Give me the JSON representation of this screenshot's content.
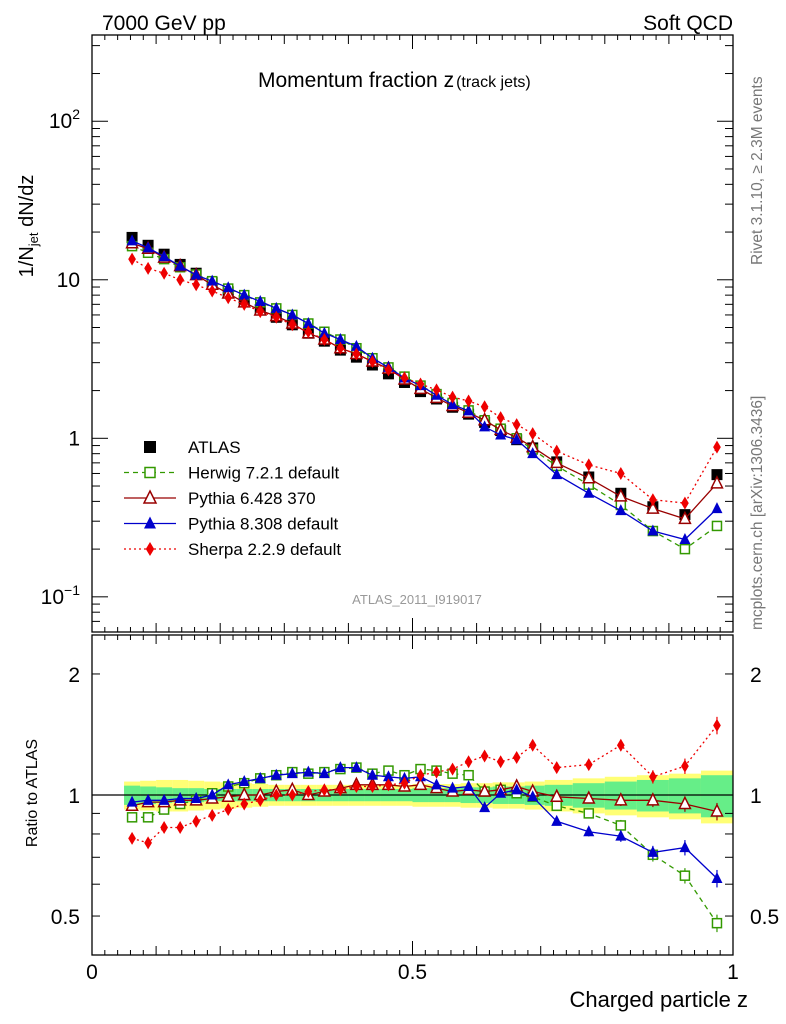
{
  "header": {
    "left": "7000 GeV pp",
    "right": "Soft QCD"
  },
  "side_labels": {
    "upper": "Rivet 3.1.10, ≥ 2.3M events",
    "lower": "mcplots.cern.ch [arXiv:1306.3436]"
  },
  "chart_data": [
    {
      "type": "scatter",
      "title_main": "Momentum fraction z",
      "title_sub": "(track jets)",
      "ylabel": "1/N_jet dN/dz",
      "ylog": true,
      "ylim": [
        0.06,
        350
      ],
      "xlim": [
        0,
        1
      ],
      "yticks": [
        {
          "v": 0.1,
          "label": "10",
          "sup": "−1"
        },
        {
          "v": 1,
          "label": "1",
          "sup": ""
        },
        {
          "v": 10,
          "label": "10",
          "sup": ""
        },
        {
          "v": 100,
          "label": "10",
          "sup": "2"
        }
      ],
      "watermark": "ATLAS_2011_I919017",
      "legend_position": "bottom-left",
      "x": [
        0.0625,
        0.0875,
        0.1125,
        0.1375,
        0.1625,
        0.1875,
        0.2125,
        0.2375,
        0.2625,
        0.2875,
        0.3125,
        0.3375,
        0.3625,
        0.3875,
        0.4125,
        0.4375,
        0.4625,
        0.4875,
        0.5125,
        0.5375,
        0.5625,
        0.5875,
        0.6125,
        0.6375,
        0.6625,
        0.6875,
        0.725,
        0.775,
        0.825,
        0.875,
        0.925,
        0.975
      ],
      "series": [
        {
          "name": "ATLAS",
          "color": "#000000",
          "marker": "square-filled",
          "line": "none",
          "values": [
            18.5,
            16.5,
            14.5,
            12.5,
            11.0,
            9.6,
            8.4,
            7.4,
            6.5,
            5.8,
            5.2,
            4.6,
            4.1,
            3.6,
            3.25,
            2.9,
            2.55,
            2.25,
            1.97,
            1.77,
            1.57,
            1.42,
            1.26,
            1.12,
            0.98,
            0.87,
            0.71,
            0.57,
            0.45,
            0.37,
            0.33,
            0.59
          ]
        },
        {
          "name": "Herwig 7.2.1 default",
          "color": "#339900",
          "marker": "square-open",
          "line": "dashed",
          "values": [
            16.3,
            14.8,
            13.5,
            12.0,
            10.8,
            9.8,
            8.8,
            8.0,
            7.2,
            6.6,
            6.0,
            5.3,
            4.7,
            4.2,
            3.7,
            3.2,
            2.8,
            2.45,
            2.15,
            1.9,
            1.67,
            1.5,
            1.3,
            1.15,
            1.0,
            0.85,
            0.67,
            0.51,
            0.38,
            0.26,
            0.2,
            0.28
          ]
        },
        {
          "name": "Pythia 6.428 370",
          "color": "#990000",
          "marker": "triangle-open",
          "line": "solid",
          "values": [
            17.0,
            15.7,
            13.8,
            12.2,
            10.7,
            9.3,
            8.2,
            7.2,
            6.4,
            5.9,
            5.3,
            4.6,
            4.2,
            3.7,
            3.4,
            3.05,
            2.75,
            2.35,
            2.05,
            1.8,
            1.6,
            1.45,
            1.3,
            1.13,
            1.01,
            0.88,
            0.7,
            0.56,
            0.43,
            0.36,
            0.31,
            0.52
          ]
        },
        {
          "name": "Pythia 8.308 default",
          "color": "#0000cc",
          "marker": "triangle-filled",
          "line": "solid",
          "values": [
            17.6,
            15.9,
            14.0,
            12.2,
            10.7,
            9.8,
            8.9,
            8.0,
            7.3,
            6.6,
            6.0,
            5.3,
            4.6,
            4.2,
            3.8,
            3.2,
            2.8,
            2.4,
            2.15,
            1.87,
            1.63,
            1.49,
            1.18,
            1.05,
            0.98,
            0.8,
            0.59,
            0.45,
            0.35,
            0.26,
            0.23,
            0.36
          ]
        },
        {
          "name": "Sherpa 2.2.9 default",
          "color": "#ee0000",
          "marker": "diamond-filled",
          "line": "dotted",
          "values": [
            13.5,
            11.8,
            11.0,
            10.0,
            9.3,
            8.5,
            7.7,
            7.0,
            6.3,
            5.8,
            5.2,
            4.7,
            4.2,
            3.7,
            3.4,
            3.05,
            2.7,
            2.4,
            2.2,
            2.02,
            1.82,
            1.72,
            1.58,
            1.35,
            1.22,
            1.07,
            0.83,
            0.68,
            0.6,
            0.41,
            0.39,
            0.88
          ]
        }
      ]
    },
    {
      "type": "scatter",
      "ylabel": "Ratio to ATLAS",
      "xlabel": "Charged particle z",
      "ylog": true,
      "ylim": [
        0.4,
        2.5
      ],
      "xlim": [
        0,
        1
      ],
      "xticks": [
        {
          "v": 0,
          "label": "0"
        },
        {
          "v": 0.5,
          "label": "0.5"
        },
        {
          "v": 1,
          "label": "1"
        }
      ],
      "yticks": [
        {
          "v": 0.5,
          "label": "0.5"
        },
        {
          "v": 1,
          "label": "1"
        },
        {
          "v": 2,
          "label": "2"
        }
      ],
      "band_green_halfwidth": [
        0.055,
        0.05,
        0.045,
        0.04,
        0.04,
        0.035,
        0.035,
        0.035,
        0.035,
        0.035,
        0.035,
        0.035,
        0.035,
        0.035,
        0.035,
        0.035,
        0.035,
        0.035,
        0.04,
        0.04,
        0.04,
        0.045,
        0.045,
        0.05,
        0.05,
        0.055,
        0.06,
        0.07,
        0.08,
        0.09,
        0.1,
        0.12
      ],
      "band_yellow_halfwidth": [
        0.08,
        0.085,
        0.09,
        0.09,
        0.085,
        0.08,
        0.075,
        0.07,
        0.065,
        0.06,
        0.06,
        0.06,
        0.06,
        0.06,
        0.06,
        0.06,
        0.06,
        0.06,
        0.065,
        0.065,
        0.065,
        0.07,
        0.07,
        0.075,
        0.075,
        0.08,
        0.09,
        0.1,
        0.11,
        0.12,
        0.13,
        0.15
      ],
      "ratios": [
        {
          "name": "Herwig 7.2.1 default",
          "values": [
            0.88,
            0.88,
            0.92,
            0.95,
            0.97,
            1.01,
            1.05,
            1.07,
            1.1,
            1.12,
            1.14,
            1.13,
            1.14,
            1.16,
            1.17,
            1.13,
            1.15,
            1.12,
            1.16,
            1.15,
            1.13,
            1.12,
            1.02,
            1.03,
            1.01,
            0.99,
            0.94,
            0.9,
            0.84,
            0.71,
            0.63,
            0.48
          ]
        },
        {
          "name": "Pythia 6.428 370",
          "values": [
            0.94,
            0.96,
            0.96,
            0.97,
            0.97,
            0.98,
            0.99,
            1.0,
            1.0,
            1.02,
            1.03,
            1.0,
            1.02,
            1.04,
            1.06,
            1.06,
            1.06,
            1.05,
            1.06,
            1.04,
            1.02,
            1.03,
            1.02,
            1.03,
            1.05,
            1.02,
            0.99,
            0.98,
            0.97,
            0.97,
            0.95,
            0.91
          ]
        },
        {
          "name": "Pythia 8.308 default",
          "values": [
            0.96,
            0.97,
            0.97,
            0.98,
            0.98,
            1.0,
            1.06,
            1.08,
            1.1,
            1.12,
            1.13,
            1.14,
            1.13,
            1.17,
            1.17,
            1.12,
            1.11,
            1.1,
            1.11,
            1.06,
            1.04,
            1.05,
            0.93,
            1.01,
            1.03,
            0.99,
            0.86,
            0.81,
            0.79,
            0.72,
            0.74,
            0.62
          ]
        },
        {
          "name": "Sherpa 2.2.9 default",
          "values": [
            0.78,
            0.76,
            0.83,
            0.83,
            0.86,
            0.89,
            0.92,
            0.95,
            0.97,
            1.0,
            1.0,
            1.02,
            1.03,
            1.03,
            1.05,
            1.05,
            1.06,
            1.07,
            1.12,
            1.14,
            1.16,
            1.21,
            1.25,
            1.21,
            1.24,
            1.33,
            1.17,
            1.19,
            1.33,
            1.11,
            1.18,
            1.49
          ]
        }
      ]
    }
  ]
}
